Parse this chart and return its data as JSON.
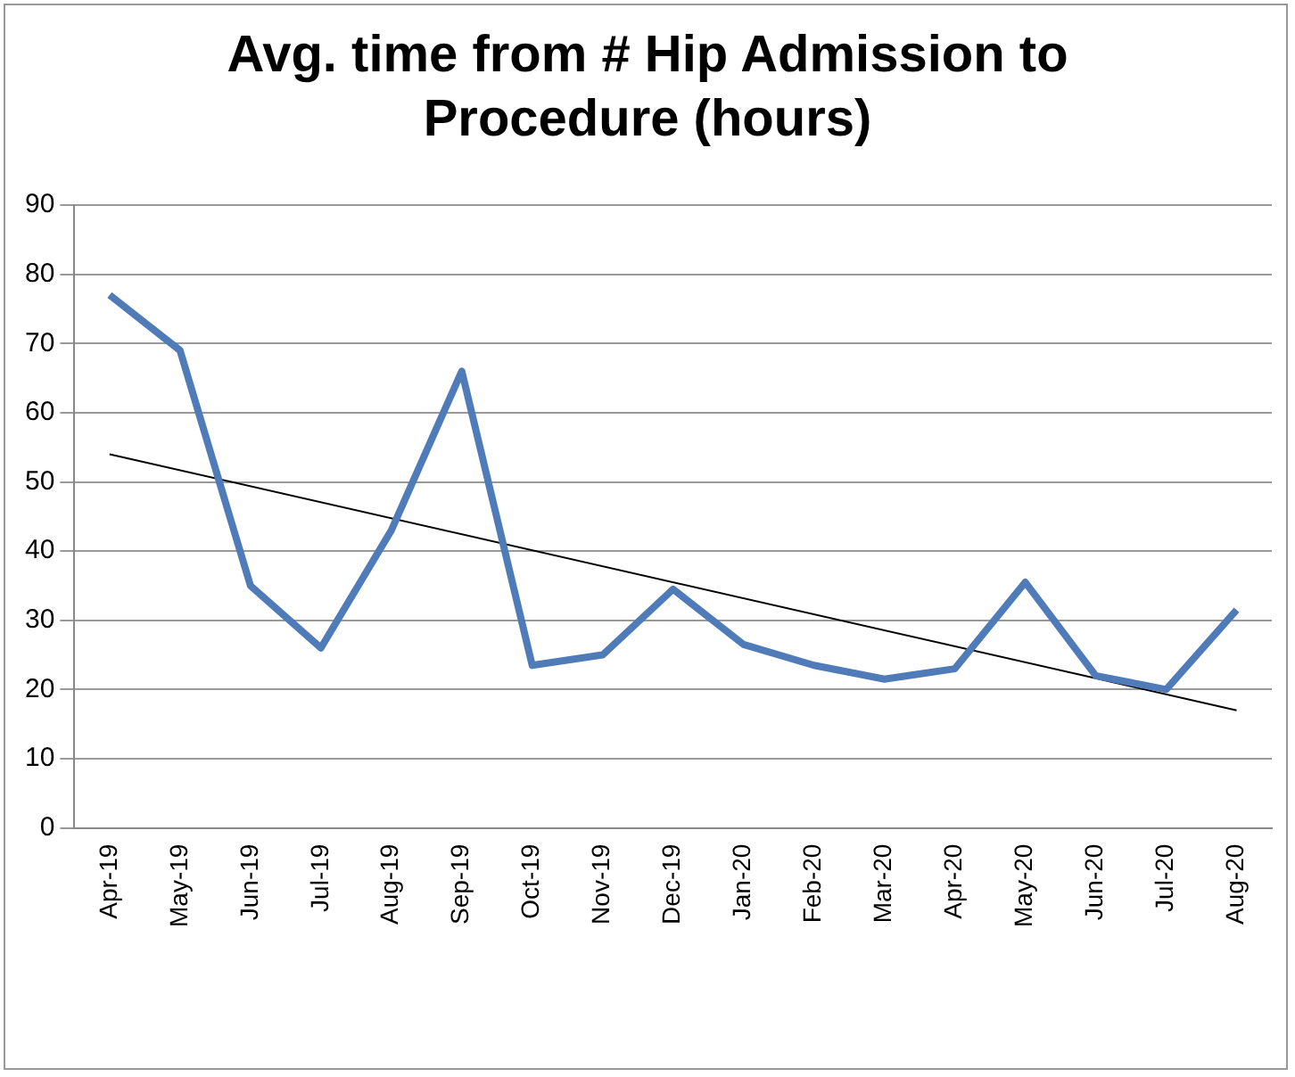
{
  "chart_data": {
    "type": "line",
    "title": "Avg. time from # Hip Admission to Procedure (hours)",
    "categories": [
      "Apr-19",
      "May-19",
      "Jun-19",
      "Jul-19",
      "Aug-19",
      "Sep-19",
      "Oct-19",
      "Nov-19",
      "Dec-19",
      "Jan-20",
      "Feb-20",
      "Mar-20",
      "Apr-20",
      "May-20",
      "Jun-20",
      "Jul-20",
      "Aug-20"
    ],
    "series": [
      {
        "color": "#4f7bb8",
        "values": [
          77,
          69,
          35,
          26,
          43,
          66,
          23.5,
          25,
          34.5,
          26.5,
          23.5,
          21.5,
          23,
          35.5,
          22,
          20,
          31.5
        ]
      },
      {
        "type": "line",
        "color": "#000000",
        "x": [
          "Apr-19",
          "Aug-20"
        ],
        "values": [
          54,
          17
        ]
      }
    ],
    "ylim": [
      0,
      90
    ],
    "yticks": [
      0,
      10,
      20,
      30,
      40,
      50,
      60,
      70,
      80,
      90
    ],
    "grid": "y",
    "legend": false,
    "marker": "none"
  }
}
